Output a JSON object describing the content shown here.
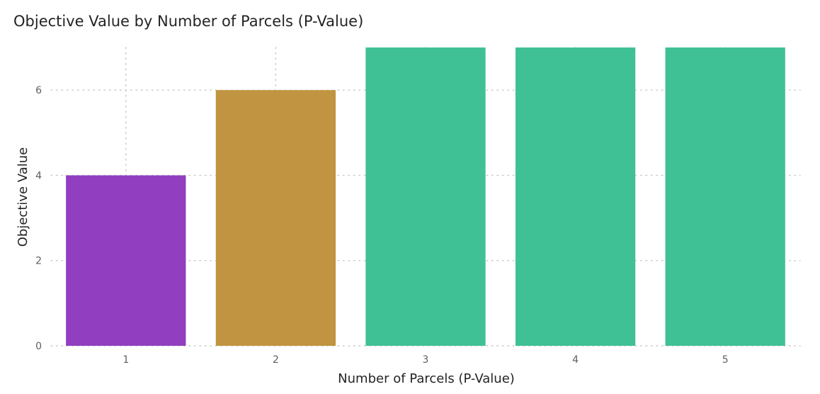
{
  "chart_data": {
    "type": "bar",
    "title": "Objective Value by Number of Parcels (P-Value)",
    "xlabel": "Number of Parcels (P-Value)",
    "ylabel": "Objective Value",
    "categories": [
      "1",
      "2",
      "3",
      "4",
      "5"
    ],
    "values": [
      4,
      6,
      7,
      7,
      7
    ],
    "colors": [
      "#913ec0",
      "#c09440",
      "#40c195",
      "#40c195",
      "#40c195"
    ],
    "yticks": [
      0,
      2,
      4,
      6
    ],
    "ylim": [
      0,
      7
    ],
    "grid": true,
    "legend": "none"
  }
}
